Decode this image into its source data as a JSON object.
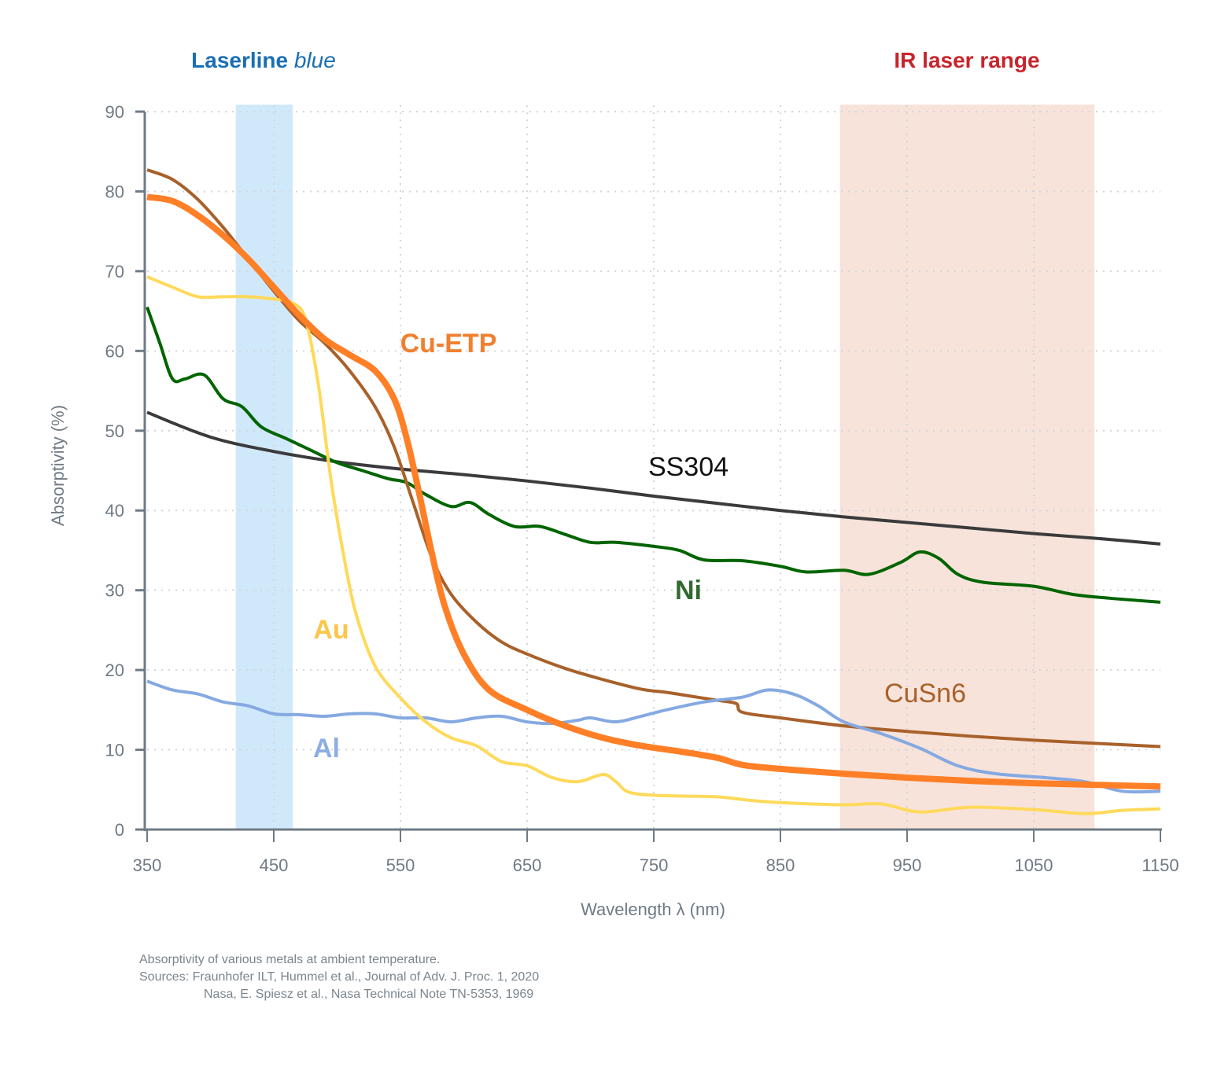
{
  "chart_data": {
    "type": "line",
    "title": "",
    "xlabel": "Wavelength λ (nm)",
    "ylabel": "Absorptivity (%)",
    "xlim": [
      350,
      1150
    ],
    "ylim": [
      0,
      90
    ],
    "xticks": [
      350,
      450,
      550,
      650,
      750,
      850,
      950,
      1050,
      1150
    ],
    "yticks": [
      0,
      10,
      20,
      30,
      40,
      50,
      60,
      70,
      80,
      90
    ],
    "grid": true,
    "bands": [
      {
        "name": "Laserline blue",
        "label_main": "Laserline ",
        "label_italic": "blue",
        "x_range": [
          420,
          465
        ],
        "color": "#d0e9fa",
        "label_color": "#1a6fb3"
      },
      {
        "name": "IR laser range",
        "label_main": "IR laser range",
        "label_italic": "",
        "x_range": [
          897,
          1098
        ],
        "color": "#f7e3da",
        "label_color": "#c8242b"
      }
    ],
    "series": [
      {
        "name": "SS304",
        "color": "#3b3b3d",
        "label": "SS304",
        "label_color": "#111111",
        "x": [
          350,
          400,
          450,
          500,
          550,
          600,
          650,
          700,
          750,
          800,
          850,
          900,
          950,
          1000,
          1050,
          1100,
          1150
        ],
        "y": [
          52.3,
          49.2,
          47.4,
          46.1,
          45.2,
          44.5,
          43.7,
          42.8,
          41.8,
          40.9,
          40.0,
          39.2,
          38.5,
          37.8,
          37.1,
          36.5,
          35.8
        ]
      },
      {
        "name": "Ni",
        "color": "#006400",
        "label": "Ni",
        "label_color": "#2f6a2f",
        "x": [
          350,
          360,
          370,
          380,
          395,
          410,
          425,
          440,
          460,
          480,
          500,
          520,
          540,
          555,
          570,
          590,
          605,
          620,
          640,
          660,
          680,
          700,
          720,
          750,
          770,
          790,
          820,
          850,
          870,
          900,
          920,
          945,
          960,
          975,
          990,
          1010,
          1050,
          1080,
          1110,
          1150
        ],
        "y": [
          65.5,
          61.0,
          56.5,
          56.5,
          57.0,
          54.0,
          53.0,
          50.5,
          49.0,
          47.5,
          46.0,
          45.0,
          44.0,
          43.5,
          42.0,
          40.5,
          41.0,
          39.5,
          38.0,
          38.0,
          37.0,
          36.0,
          36.0,
          35.5,
          35.0,
          33.8,
          33.7,
          33.0,
          32.3,
          32.5,
          32.0,
          33.5,
          34.8,
          34.0,
          32.0,
          31.0,
          30.5,
          29.5,
          29.0,
          28.5
        ]
      },
      {
        "name": "CuSn6",
        "color": "#a8612a",
        "label": "CuSn6",
        "label_color": "#a8612a",
        "x": [
          350,
          370,
          390,
          410,
          430,
          450,
          470,
          490,
          510,
          530,
          545,
          560,
          575,
          590,
          610,
          630,
          650,
          680,
          710,
          740,
          760,
          780,
          800,
          815,
          820,
          850,
          900,
          950,
          1000,
          1050,
          1100,
          1150
        ],
        "y": [
          82.7,
          81.5,
          79.0,
          75.5,
          71.5,
          67.5,
          63.8,
          61.0,
          57.5,
          53.0,
          48.0,
          41.0,
          34.0,
          29.5,
          26.0,
          23.5,
          22.0,
          20.2,
          18.8,
          17.6,
          17.2,
          16.7,
          16.2,
          15.8,
          14.7,
          14.0,
          13.0,
          12.3,
          11.7,
          11.2,
          10.8,
          10.4
        ]
      },
      {
        "name": "Cu-ETP",
        "color": "#ff7f27",
        "label": "Cu-ETP",
        "label_color": "#f08030",
        "x": [
          350,
          370,
          390,
          410,
          430,
          450,
          470,
          490,
          510,
          530,
          545,
          555,
          565,
          575,
          585,
          600,
          620,
          650,
          680,
          710,
          740,
          770,
          800,
          820,
          850,
          900,
          950,
          1000,
          1050,
          1100,
          1150
        ],
        "y": [
          79.3,
          78.8,
          77.0,
          74.5,
          71.5,
          68.0,
          64.5,
          61.5,
          59.5,
          57.5,
          54.0,
          49.0,
          42.0,
          34.5,
          28.0,
          22.0,
          17.5,
          15.0,
          13.0,
          11.5,
          10.5,
          9.8,
          9.0,
          8.1,
          7.6,
          7.0,
          6.5,
          6.1,
          5.8,
          5.6,
          5.4
        ]
      },
      {
        "name": "Au",
        "color": "#ffd95a",
        "label": "Au",
        "label_color": "#fcc64a",
        "x": [
          350,
          370,
          390,
          410,
          430,
          450,
          465,
          475,
          485,
          495,
          505,
          515,
          530,
          550,
          570,
          590,
          610,
          630,
          650,
          670,
          690,
          710,
          720,
          730,
          750,
          770,
          800,
          830,
          860,
          900,
          930,
          960,
          1000,
          1050,
          1090,
          1120,
          1150
        ],
        "y": [
          69.3,
          68.0,
          66.8,
          66.8,
          66.8,
          66.5,
          66.0,
          64.0,
          56.0,
          44.0,
          34.5,
          27.0,
          20.5,
          16.5,
          13.5,
          11.5,
          10.5,
          8.5,
          8.0,
          6.5,
          6.0,
          6.9,
          6.0,
          4.7,
          4.3,
          4.2,
          4.1,
          3.6,
          3.3,
          3.1,
          3.2,
          2.2,
          2.8,
          2.5,
          2.0,
          2.4,
          2.6
        ]
      },
      {
        "name": "Al",
        "color": "#85a9e1",
        "label": "Al",
        "label_color": "#8daee0",
        "x": [
          350,
          370,
          390,
          410,
          430,
          450,
          470,
          490,
          510,
          530,
          550,
          570,
          590,
          610,
          630,
          650,
          670,
          690,
          700,
          720,
          740,
          760,
          790,
          820,
          840,
          860,
          880,
          900,
          930,
          960,
          990,
          1020,
          1060,
          1090,
          1120,
          1150
        ],
        "y": [
          18.6,
          17.5,
          17.0,
          16.0,
          15.5,
          14.5,
          14.4,
          14.2,
          14.5,
          14.5,
          14.0,
          14.0,
          13.5,
          14.0,
          14.2,
          13.5,
          13.3,
          13.7,
          14.0,
          13.5,
          14.2,
          15.0,
          16.0,
          16.6,
          17.5,
          17.0,
          15.5,
          13.5,
          12.0,
          10.2,
          8.0,
          7.0,
          6.5,
          6.0,
          4.8,
          4.8
        ]
      }
    ]
  },
  "caption": {
    "line1": "Absorptivity of various metals at ambient temperature.",
    "line2": "Sources: Fraunhofer ILT, Hummel et al., Journal of Adv. J. Proc. 1, 2020",
    "line3": "Nasa, E. Spiesz et al., Nasa Technical Note TN-5353, 1969"
  }
}
